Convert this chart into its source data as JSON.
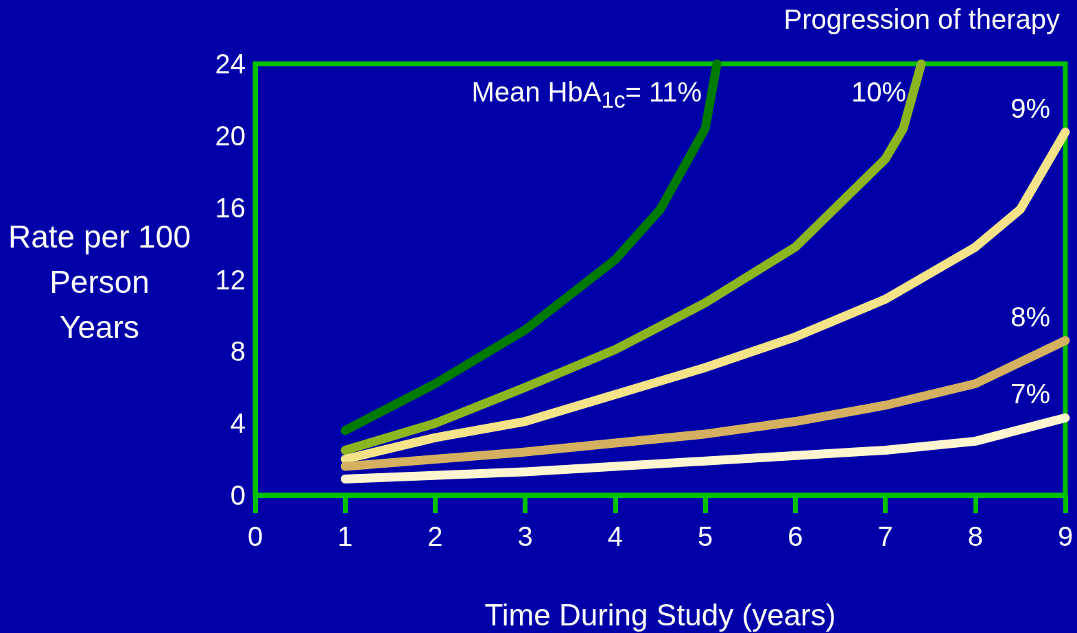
{
  "chart_data": {
    "type": "line",
    "xlabel": "Time During Study (years)",
    "ylabel": "Rate per 100 Person Years",
    "annotations": [
      "Progression of therapy"
    ],
    "xlim": [
      0,
      9
    ],
    "xticks": [
      0,
      1,
      2,
      3,
      4,
      5,
      6,
      7,
      8,
      9
    ],
    "ylim": [
      0,
      24
    ],
    "yticks": [
      0,
      4,
      8,
      12,
      16,
      20,
      24
    ],
    "grid": false,
    "legend": false,
    "marker": "none",
    "line_style": "solid",
    "series": [
      {
        "name": "Mean HbA$_{1c}$= 11%",
        "color": "#007a00",
        "x": [
          1,
          2,
          3,
          4,
          4.5,
          5,
          5.13
        ],
        "values": [
          3.6,
          6.2,
          9.2,
          13.1,
          15.9,
          20.4,
          24
        ]
      },
      {
        "name": "10%",
        "color": "#8db520",
        "x": [
          1,
          2,
          3,
          4,
          5,
          6,
          7,
          7.2,
          7.4
        ],
        "values": [
          2.5,
          4.0,
          6.0,
          8.1,
          10.7,
          13.8,
          18.7,
          20.4,
          24
        ]
      },
      {
        "name": "9%",
        "color": "#f5e38a",
        "x": [
          1,
          2,
          3,
          4,
          5,
          6,
          7,
          8,
          8.5,
          9
        ],
        "values": [
          2.0,
          3.2,
          4.1,
          5.6,
          7.1,
          8.8,
          10.9,
          13.8,
          15.9,
          20.2
        ]
      },
      {
        "name": "8%",
        "color": "#d4b060",
        "x": [
          1,
          2,
          3,
          4,
          5,
          6,
          7,
          8,
          9
        ],
        "values": [
          1.6,
          2.0,
          2.4,
          2.9,
          3.4,
          4.1,
          5.0,
          6.2,
          8.6
        ]
      },
      {
        "name": "7%",
        "color": "#fff5d0",
        "x": [
          1,
          3,
          5,
          7,
          8,
          9
        ],
        "values": [
          0.9,
          1.3,
          1.9,
          2.5,
          3.0,
          4.3
        ]
      }
    ]
  }
}
